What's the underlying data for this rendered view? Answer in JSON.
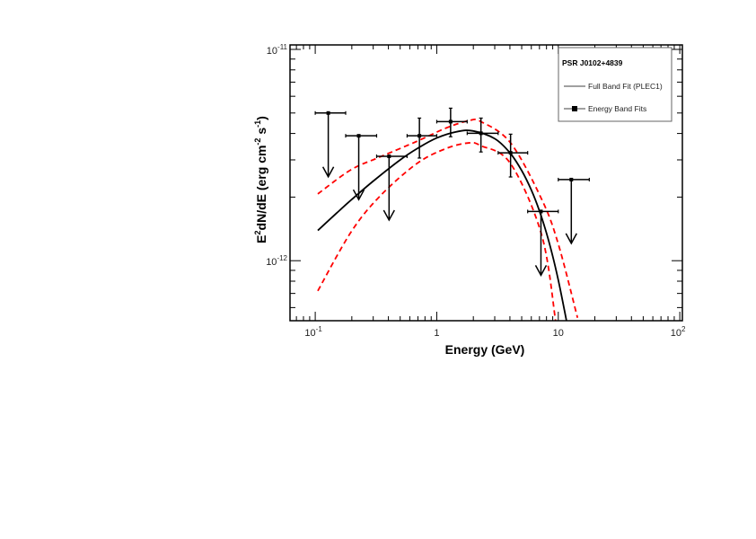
{
  "chart_data": {
    "type": "scatter",
    "title": "",
    "xlabel": "Energy (GeV)",
    "ylabel": {
      "base": "E",
      "sup1": "2",
      "mid": "dN/dE (erg cm",
      "sup2": "-2",
      "mid2": " s",
      "sup3": "-1",
      "end": ")"
    },
    "x_scale": "log",
    "y_scale": "log",
    "xlim": [
      0.062,
      105
    ],
    "ylim": [
      5.2e-13,
      1.05e-11
    ],
    "grid": false,
    "x_ticks": [
      {
        "value": 0.1,
        "base": "10",
        "exp": "-1"
      },
      {
        "value": 1,
        "base": "1",
        "exp": ""
      },
      {
        "value": 10,
        "base": "10",
        "exp": ""
      },
      {
        "value": 100,
        "base": "10",
        "exp": "2"
      }
    ],
    "y_ticks": [
      {
        "value": 1e-11,
        "base": "10",
        "exp": "-11"
      },
      {
        "value": 1e-12,
        "base": "10",
        "exp": "-12"
      }
    ],
    "legend": {
      "placement": "top-right",
      "title": "PSR J0102+4839",
      "entries": [
        {
          "label": "Full Band Fit (PLEC1)",
          "style": "line"
        },
        {
          "label": "Energy Band Fits",
          "style": "marker-line"
        }
      ]
    },
    "colors": {
      "points": "#000000",
      "fit": "#000000",
      "band": "#ff0000"
    },
    "band_points": [
      {
        "E": 0.72,
        "F": 3.9e-12,
        "E_lo": 0.57,
        "E_hi": 1.0,
        "F_lo": 3.06e-12,
        "F_hi": 4.73e-12
      },
      {
        "E": 1.3,
        "F": 4.55e-12,
        "E_lo": 1.0,
        "E_hi": 1.78,
        "F_lo": 3.86e-12,
        "F_hi": 5.27e-12
      },
      {
        "E": 2.31,
        "F": 4.01e-12,
        "E_lo": 1.78,
        "E_hi": 3.2,
        "F_lo": 3.27e-12,
        "F_hi": 4.73e-12
      },
      {
        "E": 4.05,
        "F": 3.24e-12,
        "E_lo": 3.2,
        "E_hi": 5.6,
        "F_lo": 2.49e-12,
        "F_hi": 3.97e-12
      }
    ],
    "upper_limits": [
      {
        "E": 0.128,
        "F": 5e-12,
        "E_lo": 0.1,
        "E_hi": 0.178
      },
      {
        "E": 0.228,
        "F": 3.9e-12,
        "E_lo": 0.178,
        "E_hi": 0.32
      },
      {
        "E": 0.405,
        "F": 3.12e-12,
        "E_lo": 0.32,
        "E_hi": 0.57
      },
      {
        "E": 7.2,
        "F": 1.71e-12,
        "E_lo": 5.6,
        "E_hi": 10.0
      },
      {
        "E": 12.8,
        "F": 2.42e-12,
        "E_lo": 10.0,
        "E_hi": 18.0
      }
    ],
    "fit_curve": [
      [
        0.105,
        1.39e-12
      ],
      [
        0.15,
        1.68e-12
      ],
      [
        0.2,
        1.95e-12
      ],
      [
        0.3,
        2.38e-12
      ],
      [
        0.5,
        3e-12
      ],
      [
        0.7,
        3.41e-12
      ],
      [
        1,
        3.81e-12
      ],
      [
        1.5,
        4.09e-12
      ],
      [
        2,
        4.11e-12
      ],
      [
        3,
        3.78e-12
      ],
      [
        4,
        3.24e-12
      ],
      [
        5,
        2.67e-12
      ],
      [
        6,
        2.16e-12
      ],
      [
        7,
        1.72e-12
      ],
      [
        8,
        1.35e-12
      ],
      [
        9,
        1.05e-12
      ],
      [
        10,
        8.1e-13
      ],
      [
        11,
        6.2e-13
      ],
      [
        12,
        4.8e-13
      ]
    ],
    "band_upper": [
      [
        0.105,
        2.07e-12
      ],
      [
        0.196,
        2.69e-12
      ],
      [
        0.338,
        3.09e-12
      ],
      [
        0.685,
        3.67e-12
      ],
      [
        1.2,
        4.25e-12
      ],
      [
        1.84,
        4.6e-12
      ],
      [
        2.31,
        4.55e-12
      ],
      [
        4.05,
        3.61e-12
      ],
      [
        7.31,
        1.95e-12
      ],
      [
        10,
        1.2e-12
      ],
      [
        14.4,
        5.37e-13
      ]
    ],
    "band_lower": [
      [
        0.105,
        7.2e-13
      ],
      [
        0.196,
        1.36e-12
      ],
      [
        0.338,
        2.01e-12
      ],
      [
        0.685,
        2.88e-12
      ],
      [
        1.2,
        3.4e-12
      ],
      [
        1.84,
        3.61e-12
      ],
      [
        2.31,
        3.5e-12
      ],
      [
        4.05,
        2.88e-12
      ],
      [
        7.31,
        1.32e-12
      ],
      [
        9.5,
        5.2e-13
      ]
    ]
  }
}
